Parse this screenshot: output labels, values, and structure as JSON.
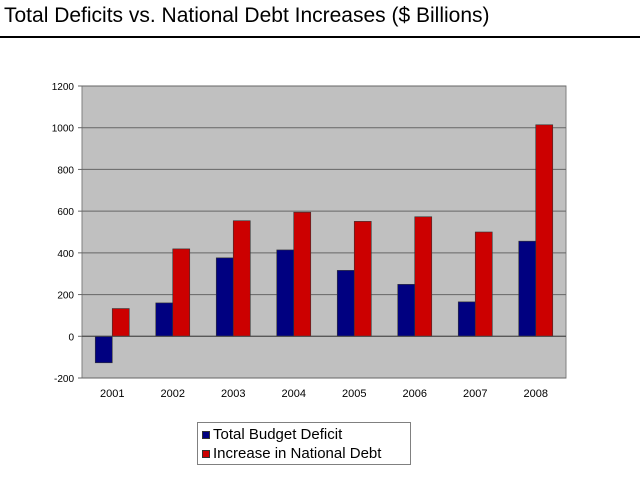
{
  "chart_data": {
    "type": "bar",
    "title": "Total Deficits vs. National Debt Increases ($ Billions)",
    "xlabel": "",
    "ylabel": "",
    "categories": [
      "2001",
      "2002",
      "2003",
      "2004",
      "2005",
      "2006",
      "2007",
      "2008"
    ],
    "series": [
      {
        "name": "Total Budget Deficit",
        "color": "#000080",
        "values": [
          -127,
          160,
          376,
          414,
          316,
          249,
          165,
          456
        ]
      },
      {
        "name": "Increase in National Debt",
        "color": "#CC0000",
        "values": [
          133,
          419,
          554,
          595,
          551,
          573,
          500,
          1014
        ]
      }
    ],
    "ylim": [
      -200,
      1200
    ],
    "yticks": [
      "1200",
      "1000",
      "800",
      "600",
      "400",
      "200",
      "0",
      "-200"
    ],
    "ytick_values": [
      1200,
      1000,
      800,
      600,
      400,
      200,
      0,
      -200
    ],
    "grid": true,
    "plot_background": "#C0C0C0",
    "legend_position": "bottom"
  }
}
